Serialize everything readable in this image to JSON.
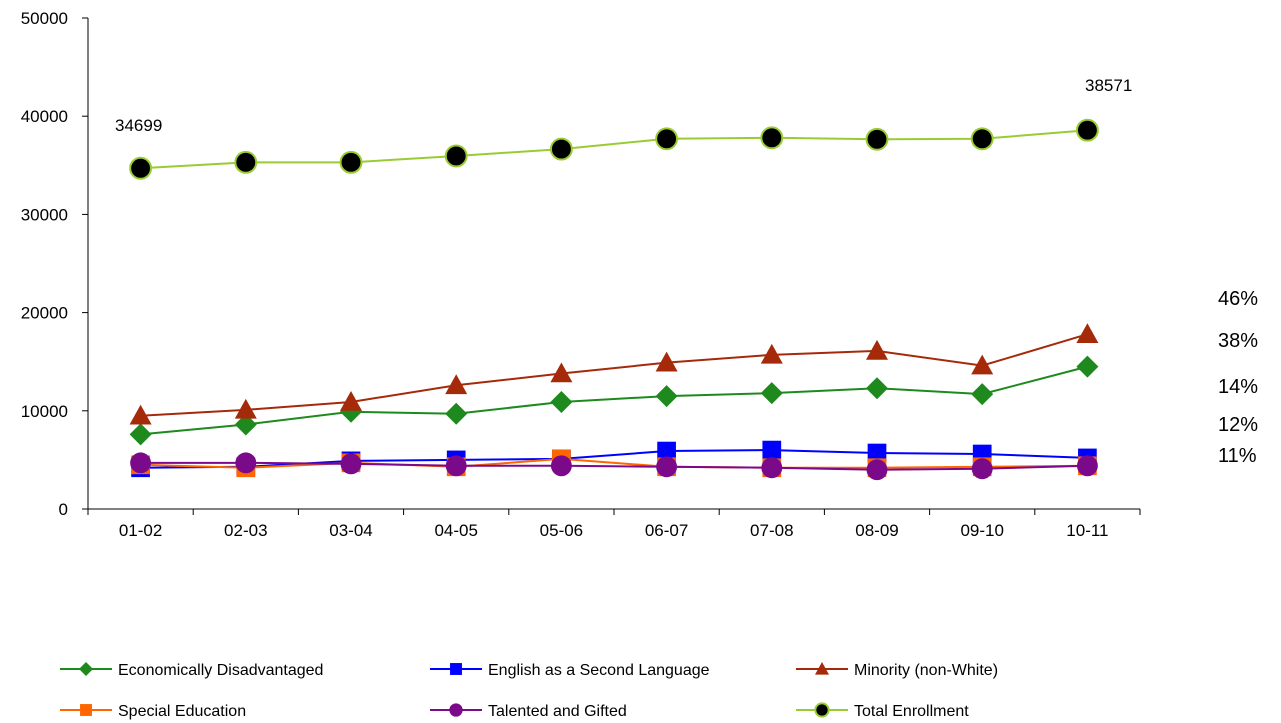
{
  "chart_data": {
    "type": "line",
    "title": "",
    "xlabel": "",
    "ylabel": "",
    "categories": [
      "01-02",
      "02-03",
      "03-04",
      "04-05",
      "05-06",
      "06-07",
      "07-08",
      "08-09",
      "09-10",
      "10-11"
    ],
    "ylim": [
      0,
      50000
    ],
    "yticks": [
      "0",
      "10000",
      "20000",
      "30000",
      "40000",
      "50000"
    ],
    "grid": false,
    "legend_position": "bottom",
    "series": [
      {
        "name": "Economically Disadvantaged",
        "color": "#1e8a1e",
        "marker": "diamond",
        "values": [
          7600,
          8600,
          9900,
          9700,
          10900,
          11500,
          11800,
          12300,
          11700,
          14500
        ]
      },
      {
        "name": "English as a Second Language",
        "color": "#0000ff",
        "marker": "square",
        "values": [
          4200,
          4300,
          4900,
          5000,
          5100,
          5900,
          6000,
          5700,
          5600,
          5200
        ]
      },
      {
        "name": "Minority (non-White)",
        "color": "#a52a0a",
        "marker": "triangle",
        "values": [
          9500,
          10100,
          10900,
          12600,
          13800,
          14900,
          15700,
          16100,
          14600,
          17800
        ]
      },
      {
        "name": "Special Education",
        "color": "#ff6600",
        "marker": "square",
        "values": [
          4500,
          4200,
          4700,
          4300,
          5100,
          4300,
          4200,
          4200,
          4300,
          4400
        ]
      },
      {
        "name": "Talented and Gifted",
        "color": "#7a0a8a",
        "marker": "circle",
        "values": [
          4700,
          4700,
          4600,
          4400,
          4400,
          4300,
          4200,
          4000,
          4100,
          4400
        ]
      },
      {
        "name": "Total Enrollment",
        "color": "#99cc33",
        "marker": "circle-black",
        "values": [
          34699,
          35300,
          35300,
          35950,
          36650,
          37700,
          37800,
          37650,
          37700,
          38571
        ]
      }
    ],
    "annotations": {
      "first_total": "34699",
      "last_total": "38571",
      "percentages": [
        "46%",
        "38%",
        "14%",
        "12%",
        "11%"
      ]
    }
  }
}
